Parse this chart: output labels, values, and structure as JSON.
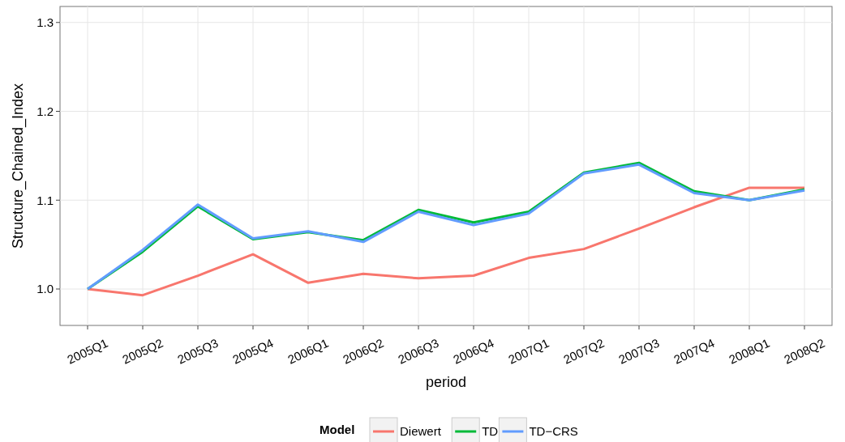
{
  "chart_data": {
    "type": "line",
    "xlabel": "period",
    "ylabel": "Structure_Chained_Index",
    "legend_title": "Model",
    "legend": "bottom",
    "grid": true,
    "line_style": "solid",
    "categories": [
      "2005Q1",
      "2005Q2",
      "2005Q3",
      "2005Q4",
      "2006Q1",
      "2006Q2",
      "2006Q3",
      "2006Q4",
      "2007Q1",
      "2007Q2",
      "2007Q3",
      "2007Q4",
      "2008Q1",
      "2008Q2"
    ],
    "ylim": [
      0.959,
      1.318
    ],
    "yticks": [
      {
        "value": 1.0,
        "label": "1.0"
      },
      1.1,
      1.2,
      1.3
    ],
    "series": [
      {
        "name": "Diewert",
        "color": "#f8766d",
        "values": [
          1.0,
          0.993,
          1.015,
          1.039,
          1.007,
          1.017,
          1.012,
          1.015,
          1.035,
          1.045,
          1.068,
          1.092,
          1.114,
          1.114
        ]
      },
      {
        "name": "TD",
        "color": "#00ba38",
        "values": [
          1.0,
          1.042,
          1.093,
          1.056,
          1.064,
          1.055,
          1.089,
          1.075,
          1.087,
          1.131,
          1.142,
          1.11,
          1.1,
          1.112
        ]
      },
      {
        "name": "TD−CRS",
        "color": "#619cff",
        "values": [
          1.0,
          1.044,
          1.095,
          1.057,
          1.065,
          1.053,
          1.087,
          1.072,
          1.085,
          1.13,
          1.14,
          1.108,
          1.1,
          1.111
        ]
      }
    ]
  }
}
